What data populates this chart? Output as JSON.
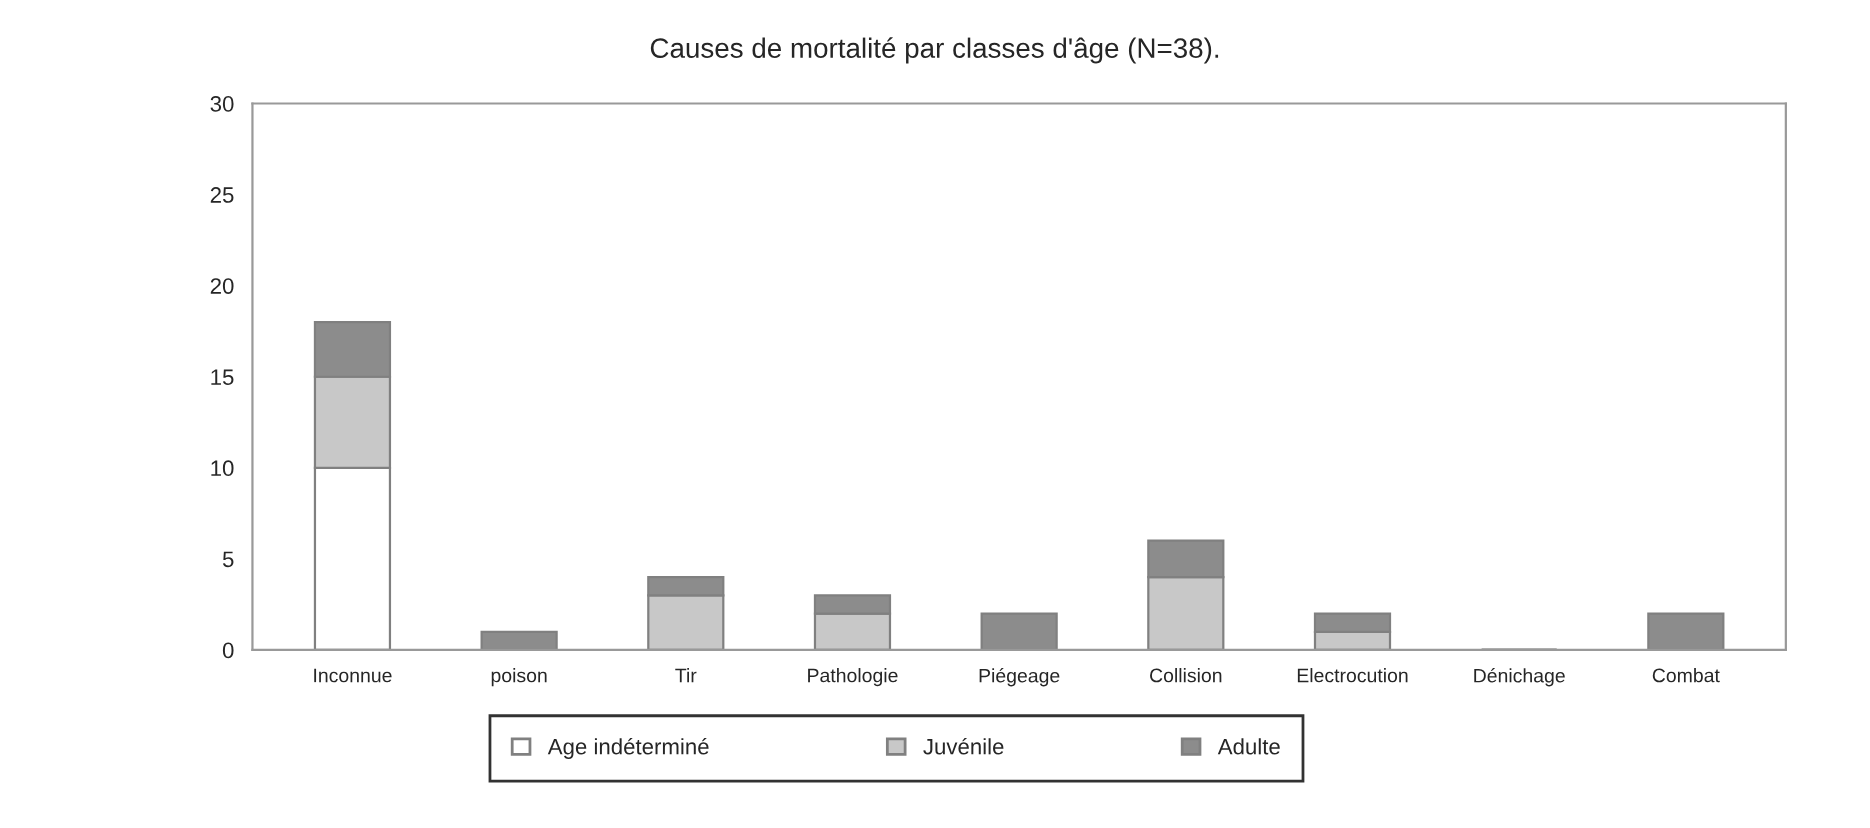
{
  "chart_data": {
    "type": "bar",
    "title": "Causes de mortalité par classes d'âge (N=38).",
    "categories": [
      "Inconnue",
      "poison",
      "Tir",
      "Pathologie",
      "Piégeage",
      "Collision",
      "Electrocution",
      "Dénichage",
      "Combat"
    ],
    "stacked": true,
    "series": [
      {
        "name": "Age indéterminé",
        "color": "#ffffff",
        "values": [
          10,
          0,
          0,
          0,
          0,
          0,
          0,
          0,
          0
        ]
      },
      {
        "name": "Juvénile",
        "color": "#c8c8c8",
        "values": [
          5,
          0,
          3,
          2,
          0,
          4,
          1,
          0,
          0
        ]
      },
      {
        "name": "Adulte",
        "color": "#8c8c8c",
        "values": [
          3,
          1,
          1,
          1,
          2,
          2,
          1,
          0,
          2
        ]
      }
    ],
    "ylim": [
      0,
      30
    ],
    "yticks": [
      0,
      5,
      10,
      15,
      20,
      25,
      30
    ],
    "grid": false,
    "legend": "bottom"
  }
}
